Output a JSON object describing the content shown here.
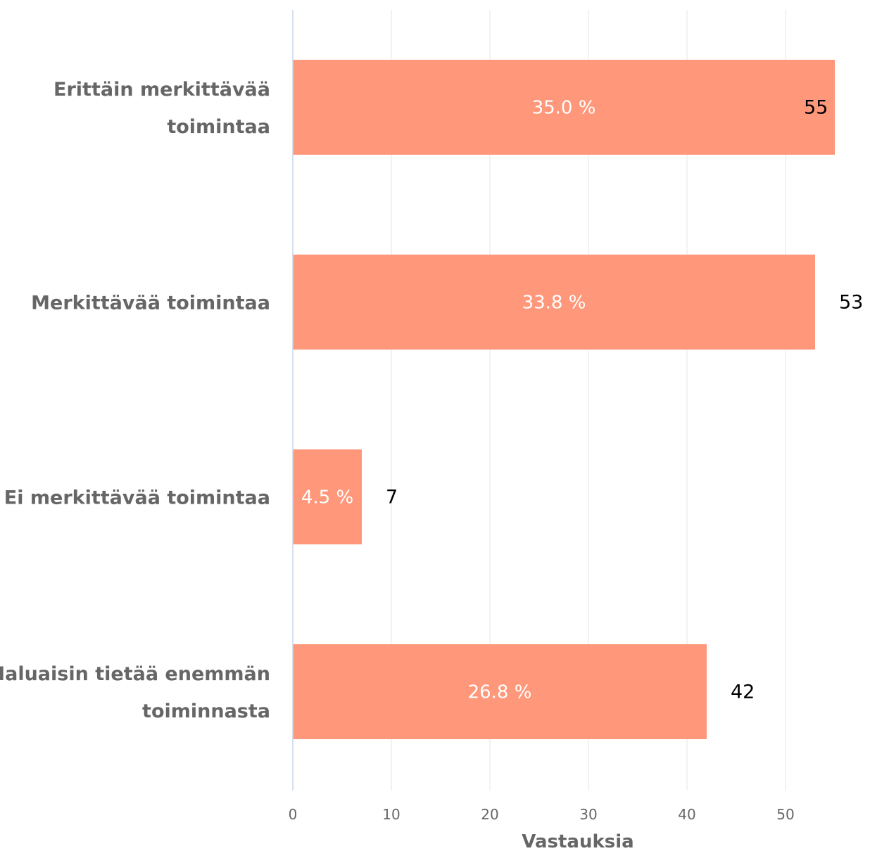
{
  "chart_data": {
    "type": "bar",
    "orientation": "horizontal",
    "categories": [
      [
        "Erittäin merkittävää",
        "toimintaa"
      ],
      [
        "Merkittävää toimintaa"
      ],
      [
        "Ei merkittävää toimintaa"
      ],
      [
        "Haluaisin tietää enemmän",
        "toiminnasta"
      ]
    ],
    "values": [
      55,
      53,
      7,
      42
    ],
    "percent_labels": [
      "35.0 %",
      "33.8 %",
      "4.5 %",
      "26.8 %"
    ],
    "xlabel": "Vastauksia",
    "xlim": [
      0,
      55
    ],
    "xticks": [
      0,
      10,
      20,
      30,
      40,
      50
    ],
    "grid": true,
    "bar_color": "#ff977a"
  }
}
